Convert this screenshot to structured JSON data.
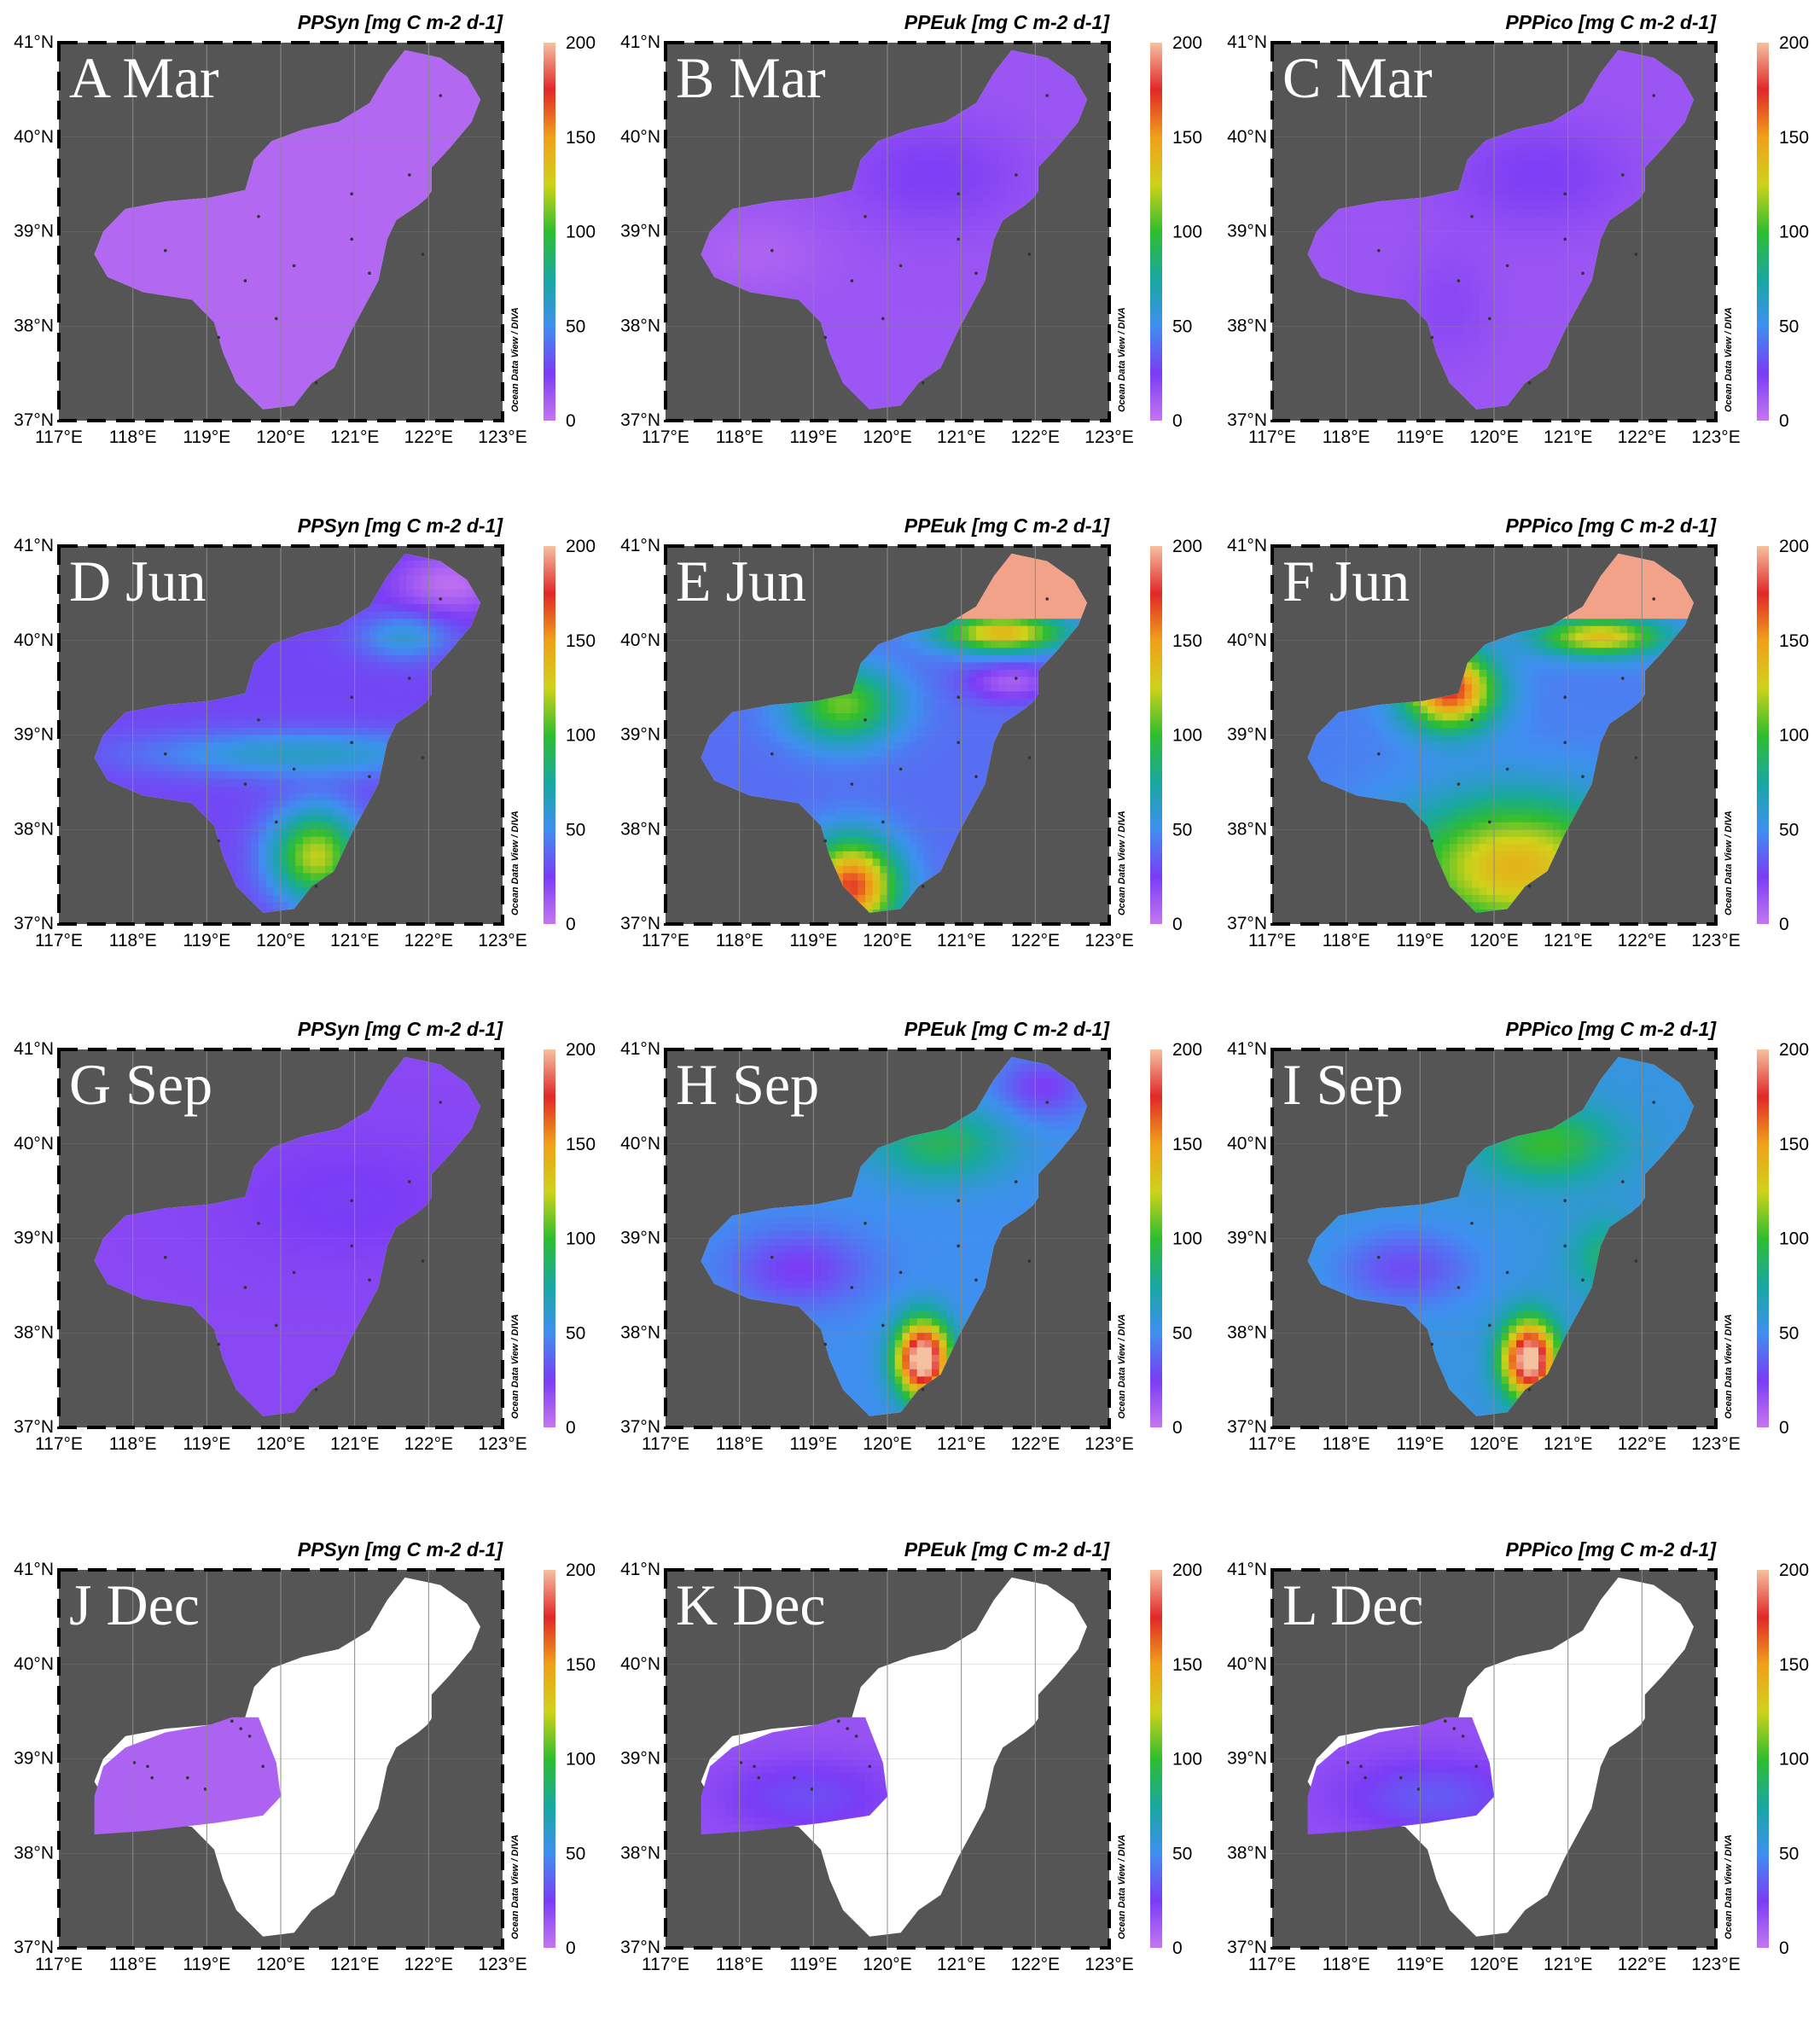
{
  "panels": [
    {
      "label": "A Mar",
      "title": "PPSyn [mg C m-2 d-1]",
      "month": "Mar",
      "variable": "PPSyn",
      "pattern": "mar_syn"
    },
    {
      "label": "B Mar",
      "title": "PPEuk [mg C m-2 d-1]",
      "month": "Mar",
      "variable": "PPEuk",
      "pattern": "mar_euk"
    },
    {
      "label": "C Mar",
      "title": "PPPico [mg C m-2 d-1]",
      "month": "Mar",
      "variable": "PPPico",
      "pattern": "mar_pico"
    },
    {
      "label": "D Jun",
      "title": "PPSyn [mg C m-2 d-1]",
      "month": "Jun",
      "variable": "PPSyn",
      "pattern": "jun_syn"
    },
    {
      "label": "E Jun",
      "title": "PPEuk [mg C m-2 d-1]",
      "month": "Jun",
      "variable": "PPEuk",
      "pattern": "jun_euk"
    },
    {
      "label": "F Jun",
      "title": "PPPico [mg C m-2 d-1]",
      "month": "Jun",
      "variable": "PPPico",
      "pattern": "jun_pico"
    },
    {
      "label": "G Sep",
      "title": "PPSyn [mg C m-2 d-1]",
      "month": "Sep",
      "variable": "PPSyn",
      "pattern": "sep_syn"
    },
    {
      "label": "H Sep",
      "title": "PPEuk [mg C m-2 d-1]",
      "month": "Sep",
      "variable": "PPEuk",
      "pattern": "sep_euk"
    },
    {
      "label": "I Sep",
      "title": "PPPico [mg C m-2 d-1]",
      "month": "Sep",
      "variable": "PPPico",
      "pattern": "sep_pico"
    },
    {
      "label": "J Dec",
      "title": "PPSyn [mg C m-2 d-1]",
      "month": "Dec",
      "variable": "PPSyn",
      "pattern": "dec_syn"
    },
    {
      "label": "K Dec",
      "title": "PPEuk [mg C m-2 d-1]",
      "month": "Dec",
      "variable": "PPEuk",
      "pattern": "dec_euk"
    },
    {
      "label": "L Dec",
      "title": "PPPico [mg C m-2 d-1]",
      "month": "Dec",
      "variable": "PPPico",
      "pattern": "dec_pico"
    }
  ],
  "axes": {
    "lon_labels": [
      "117°E",
      "118°E",
      "119°E",
      "120°E",
      "121°E",
      "122°E",
      "123°E"
    ],
    "lat_labels": [
      "37°N",
      "38°N",
      "39°N",
      "40°N",
      "41°N"
    ],
    "lon_range": [
      117,
      123
    ],
    "lat_range": [
      37,
      41
    ]
  },
  "colorbar": {
    "ticks": [
      "0",
      "50",
      "100",
      "150",
      "200"
    ],
    "range": [
      0,
      200
    ],
    "colors": [
      "#c576f0",
      "#7a3cf5",
      "#3f8ff0",
      "#18a8a0",
      "#2fbd2f",
      "#cfd21a",
      "#f0a01a",
      "#e02828",
      "#f5c1a0"
    ]
  },
  "credit": "Ocean Data View / DIVA",
  "colors": {
    "land": "#555555",
    "no_data": "#ffffff",
    "station": "#333333"
  }
}
